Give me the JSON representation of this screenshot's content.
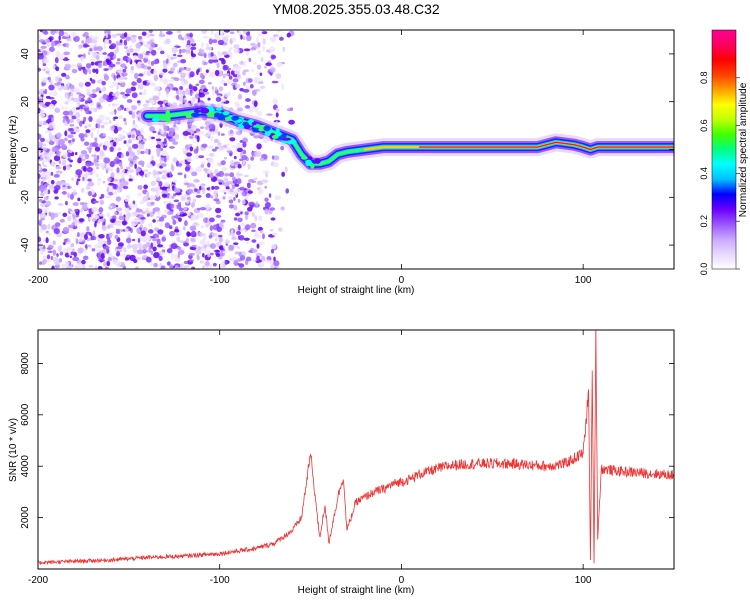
{
  "title": "YM08.2025.355.03.48.C32",
  "chart_data": [
    {
      "type": "heatmap",
      "name": "spectrogram",
      "xlabel": "Height of straight line (km)",
      "ylabel": "Frequency (Hz)",
      "xlim": [
        -200,
        150
      ],
      "ylim": [
        -50,
        50
      ],
      "xticks": [
        -200,
        -100,
        0,
        100
      ],
      "yticks": [
        -40,
        -20,
        0,
        20,
        40
      ],
      "colorbar": {
        "label": "Normalized spectral amplitude",
        "range": [
          0,
          1
        ],
        "ticks": [
          0.0,
          0.2,
          0.4,
          0.6,
          0.8
        ],
        "colors": [
          "#ffffff",
          "#e8d8ff",
          "#c9a8ff",
          "#9a55ff",
          "#6a00ff",
          "#0000ff",
          "#00bfff",
          "#00ffff",
          "#00ff80",
          "#40ff00",
          "#c0ff00",
          "#ffff00",
          "#ffa000",
          "#ff4000",
          "#ff0000",
          "#ff0060",
          "#ff0090"
        ]
      },
      "ridge": {
        "x": [
          -140,
          -130,
          -120,
          -110,
          -100,
          -90,
          -80,
          -70,
          -60,
          -55,
          -50,
          -45,
          -40,
          -35,
          -30,
          -20,
          -10,
          0,
          10,
          20,
          40,
          60,
          75,
          85,
          95,
          100,
          104,
          108,
          115,
          130,
          150
        ],
        "y": [
          14,
          14,
          15,
          16,
          15,
          12,
          10,
          7,
          4,
          -2,
          -6,
          -6,
          -5,
          -2,
          -1,
          0,
          1,
          1,
          1,
          1,
          1,
          1,
          1,
          3,
          2,
          1,
          0,
          1,
          1,
          1,
          1
        ]
      },
      "noise_region": [
        -200,
        -70
      ]
    },
    {
      "type": "line",
      "name": "snr",
      "xlabel": "Height of straight line (km)",
      "ylabel": "SNR (10 * v/v)",
      "xlim": [
        -200,
        150
      ],
      "ylim": [
        0,
        9300
      ],
      "xticks": [
        -200,
        -100,
        0,
        100
      ],
      "yticks": [
        2000,
        4000,
        6000,
        8000
      ],
      "color": "#ee3333",
      "series": {
        "x": [
          -200,
          -180,
          -160,
          -140,
          -120,
          -100,
          -90,
          -80,
          -70,
          -60,
          -55,
          -50,
          -45,
          -42,
          -40,
          -35,
          -32,
          -30,
          -25,
          -20,
          -15,
          -10,
          -5,
          0,
          5,
          10,
          15,
          20,
          25,
          30,
          40,
          50,
          60,
          70,
          80,
          90,
          95,
          100,
          103,
          104,
          105,
          106,
          107,
          108,
          110,
          120,
          130,
          140,
          150
        ],
        "y": [
          250,
          300,
          350,
          450,
          500,
          600,
          700,
          800,
          1000,
          1500,
          2000,
          4500,
          1200,
          2500,
          1000,
          2800,
          3600,
          1500,
          2600,
          2800,
          3000,
          3100,
          3300,
          3400,
          3500,
          3700,
          3800,
          3900,
          4000,
          4050,
          4100,
          4100,
          4100,
          4050,
          4000,
          4100,
          4300,
          4500,
          6900,
          300,
          7500,
          200,
          9300,
          1200,
          3900,
          3800,
          3750,
          3700,
          3650
        ]
      },
      "noise": 150
    }
  ]
}
